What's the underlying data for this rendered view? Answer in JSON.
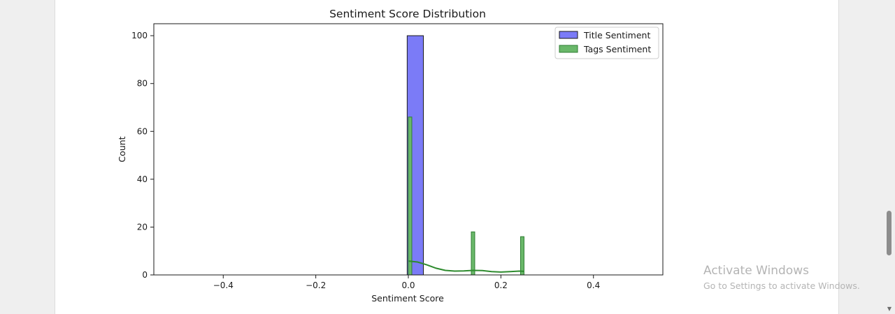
{
  "chart_data": {
    "type": "histogram",
    "title": "Sentiment Score Distribution",
    "xlabel": "Sentiment Score",
    "ylabel": "Count",
    "xlim": [
      -0.55,
      0.55
    ],
    "ylim": [
      0,
      105
    ],
    "xticks": [
      -0.4,
      -0.2,
      0.0,
      0.2,
      0.4
    ],
    "xtick_labels": [
      "−0.4",
      "−0.2",
      "0.0",
      "0.2",
      "0.4"
    ],
    "yticks": [
      0,
      20,
      40,
      60,
      80,
      100
    ],
    "ytick_labels": [
      "0",
      "20",
      "40",
      "60",
      "80",
      "100"
    ],
    "grid": false,
    "legend_position": "top-right",
    "series": [
      {
        "name": "Title Sentiment",
        "color": "#7b7bf7",
        "edge_color": "#1a1a1a",
        "bins": [
          {
            "x0": -0.0025,
            "x1": 0.0325,
            "count": 100
          }
        ]
      },
      {
        "name": "Tags Sentiment",
        "color": "#6ab86a",
        "edge_color": "#2e7d32",
        "bins": [
          {
            "x0": 0.0,
            "x1": 0.0075,
            "count": 66
          },
          {
            "x0": 0.136,
            "x1": 0.1435,
            "count": 18
          },
          {
            "x0": 0.2425,
            "x1": 0.25,
            "count": 16
          }
        ],
        "kde": {
          "color": "#2e8b2e",
          "points": [
            [
              0.0,
              5.8
            ],
            [
              0.02,
              5.4
            ],
            [
              0.04,
              4.2
            ],
            [
              0.06,
              2.8
            ],
            [
              0.08,
              1.9
            ],
            [
              0.1,
              1.6
            ],
            [
              0.12,
              1.7
            ],
            [
              0.14,
              1.9
            ],
            [
              0.16,
              1.8
            ],
            [
              0.18,
              1.4
            ],
            [
              0.2,
              1.2
            ],
            [
              0.22,
              1.4
            ],
            [
              0.24,
              1.6
            ],
            [
              0.25,
              1.5
            ]
          ]
        }
      }
    ],
    "baseline": {
      "x0": -0.5,
      "x1": 0.5,
      "color": "#1a1a1a"
    }
  },
  "watermark": {
    "title": "Activate Windows",
    "subtitle": "Go to Settings to activate Windows."
  }
}
